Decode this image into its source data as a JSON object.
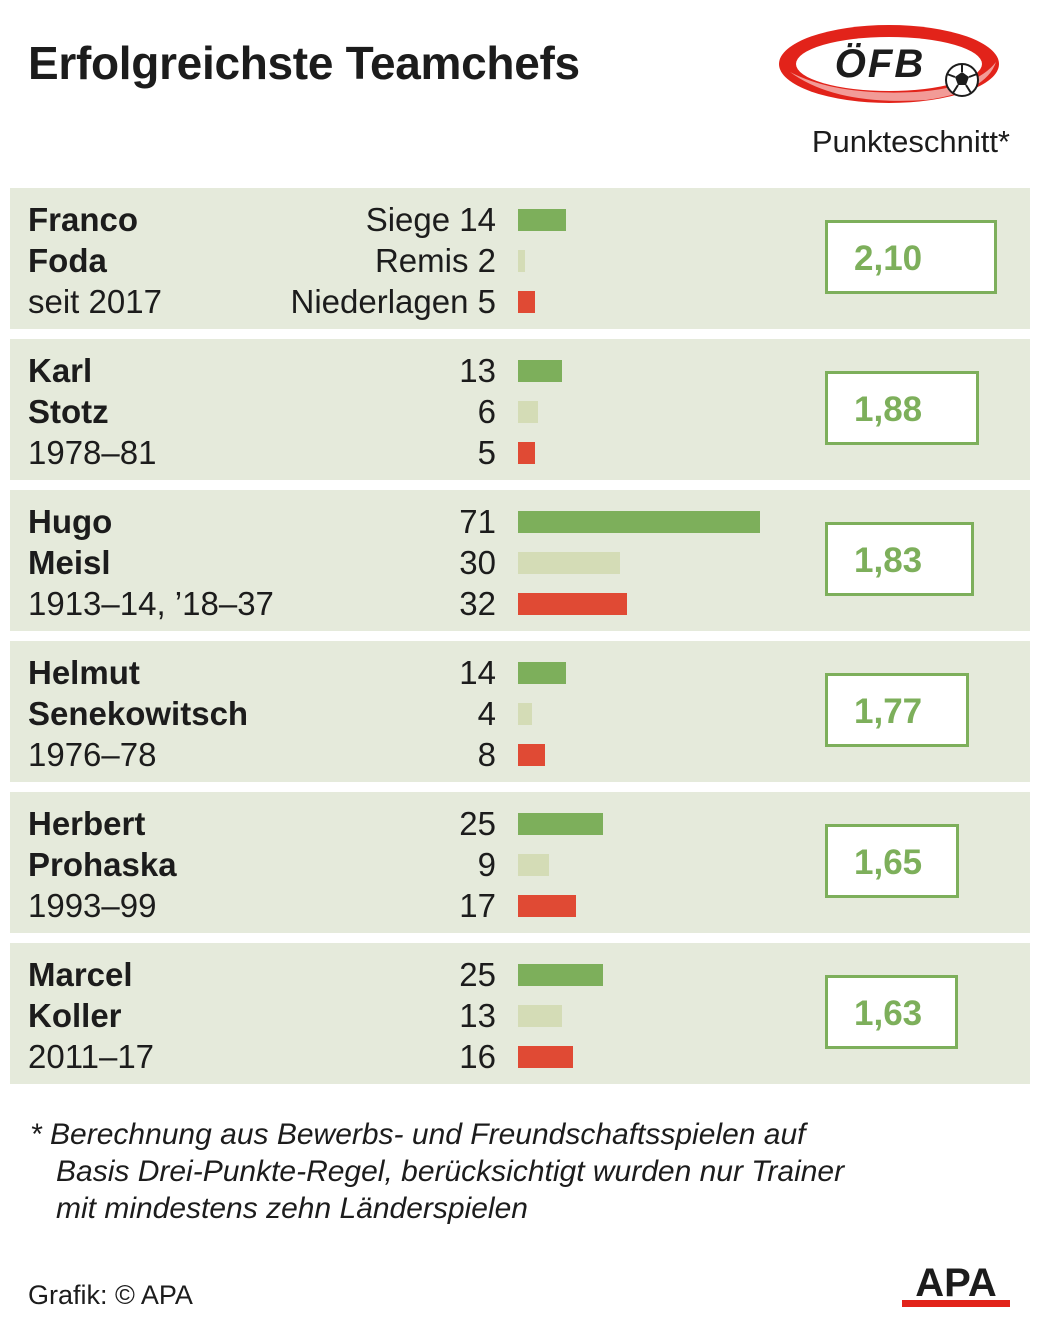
{
  "title": "Erfolgreichste Teamchefs",
  "logo_text": "ÖFB",
  "column_header": "Punkteschnitt*",
  "legend_labels": [
    "Siege",
    "Remis",
    "Niederlagen"
  ],
  "colors": {
    "wins": "#7daf5b",
    "draws": "#d4dcb6",
    "losses": "#e04a34",
    "row_bg": "#e5eadb",
    "avg": "#7daf5b",
    "logo_red": "#e2231a"
  },
  "chart_data": {
    "type": "bar",
    "categories": [
      "Franco Foda",
      "Karl Stotz",
      "Hugo Meisl",
      "Helmut Senekowitsch",
      "Herbert Prohaska",
      "Marcel Koller"
    ],
    "series": [
      {
        "name": "Siege",
        "values": [
          14,
          13,
          71,
          14,
          25,
          25
        ]
      },
      {
        "name": "Remis",
        "values": [
          2,
          6,
          30,
          4,
          9,
          13
        ]
      },
      {
        "name": "Niederlagen",
        "values": [
          5,
          5,
          32,
          8,
          17,
          16
        ]
      }
    ],
    "points_average": [
      "2,10",
      "1,88",
      "1,83",
      "1,77",
      "1,65",
      "1,63"
    ],
    "title": "Erfolgreichste Teamchefs"
  },
  "coaches": [
    {
      "first": "Franco",
      "last": "Foda",
      "period": "seit 2017",
      "wins": 14,
      "draws": 2,
      "losses": 5,
      "avg": "2,10",
      "avg_value": 2.1
    },
    {
      "first": "Karl",
      "last": "Stotz",
      "period": "1978–81",
      "wins": 13,
      "draws": 6,
      "losses": 5,
      "avg": "1,88",
      "avg_value": 1.88
    },
    {
      "first": "Hugo",
      "last": "Meisl",
      "period": "1913–14, ’18–37",
      "wins": 71,
      "draws": 30,
      "losses": 32,
      "avg": "1,83",
      "avg_value": 1.83
    },
    {
      "first": "Helmut",
      "last": "Senekowitsch",
      "period": "1976–78",
      "wins": 14,
      "draws": 4,
      "losses": 8,
      "avg": "1,77",
      "avg_value": 1.77
    },
    {
      "first": "Herbert",
      "last": "Prohaska",
      "period": "1993–99",
      "wins": 25,
      "draws": 9,
      "losses": 17,
      "avg": "1,65",
      "avg_value": 1.65
    },
    {
      "first": "Marcel",
      "last": "Koller",
      "period": "2011–17",
      "wins": 25,
      "draws": 13,
      "losses": 16,
      "avg": "1,63",
      "avg_value": 1.63
    }
  ],
  "footnote": [
    "* Berechnung aus Bewerbs- und Freundschaftsspielen auf",
    "Basis Drei-Punkte-Regel, berücksichtigt wurden nur Trainer",
    "mit mindestens zehn  Länderspielen"
  ],
  "credit": "Grafik: © APA",
  "agency_logo_text": "APA"
}
